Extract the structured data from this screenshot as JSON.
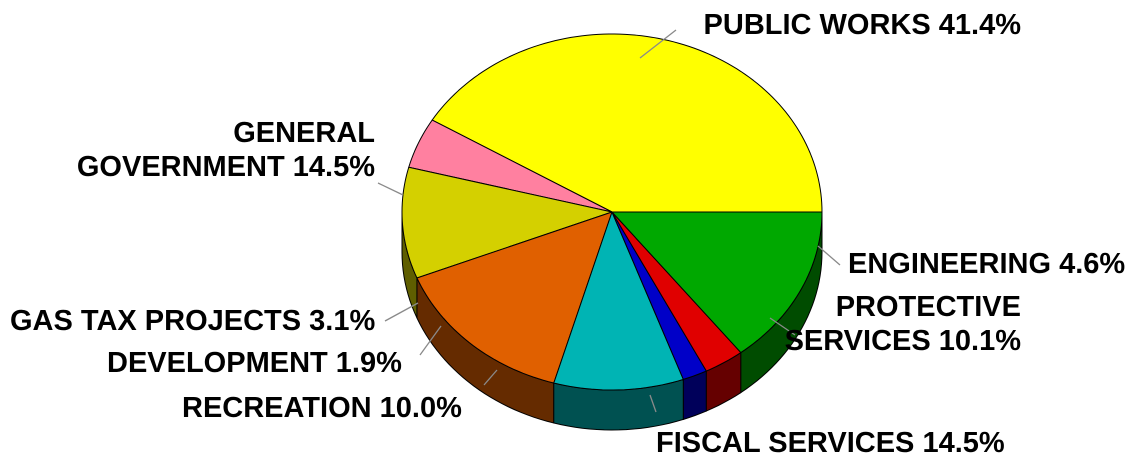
{
  "chart_data": {
    "type": "pie",
    "title": "",
    "three_d": true,
    "legend": "none",
    "slices": [
      {
        "label_lines": [
          "PUBLIC WORKS 41.4%"
        ],
        "category": "PUBLIC WORKS",
        "value": 41.4,
        "color": "#ffff00"
      },
      {
        "label_lines": [
          "ENGINEERING 4.6%"
        ],
        "category": "ENGINEERING",
        "value": 4.6,
        "color": "#ff80a0"
      },
      {
        "label_lines": [
          "PROTECTIVE",
          "SERVICES 10.1%"
        ],
        "category": "PROTECTIVE SERVICES",
        "value": 10.1,
        "color": "#d4d000"
      },
      {
        "label_lines": [
          "FISCAL SERVICES 14.5%"
        ],
        "category": "FISCAL SERVICES",
        "value": 14.5,
        "color": "#e06000"
      },
      {
        "label_lines": [
          "RECREATION 10.0%"
        ],
        "category": "RECREATION",
        "value": 10.0,
        "color": "#00b4b4"
      },
      {
        "label_lines": [
          "DEVELOPMENT 1.9%"
        ],
        "category": "DEVELOPMENT",
        "value": 1.9,
        "color": "#0000c8"
      },
      {
        "label_lines": [
          "GAS TAX PROJECTS 3.1%"
        ],
        "category": "GAS TAX PROJECTS",
        "value": 3.1,
        "color": "#e00000"
      },
      {
        "label_lines": [
          "GENERAL",
          "GOVERNMENT 14.5%"
        ],
        "category": "GENERAL GOVERNMENT",
        "value": 14.5,
        "color": "#00a800"
      }
    ]
  }
}
